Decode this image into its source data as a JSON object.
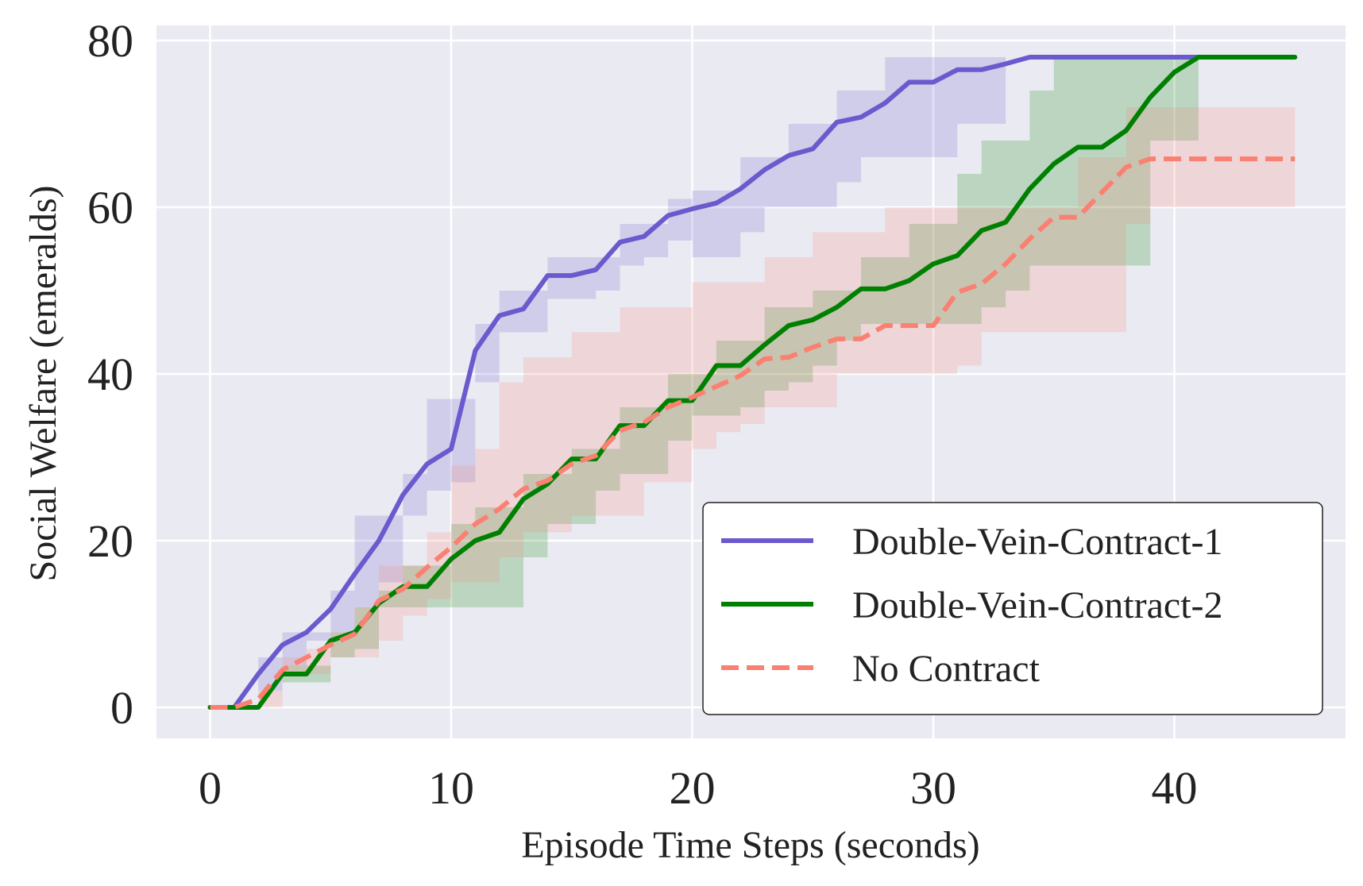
{
  "chart_data": {
    "type": "line",
    "title": "",
    "xlabel": "Episode Time Steps (seconds)",
    "ylabel": "Social Welfare (emeralds)",
    "xlim": [
      -2.2,
      47.2
    ],
    "ylim": [
      -4,
      82
    ],
    "xticks": [
      0,
      10,
      20,
      30,
      40
    ],
    "yticks": [
      0,
      20,
      40,
      60,
      80
    ],
    "grid": true,
    "legend_position": "lower-right",
    "background": "#EAEAF2",
    "x": [
      0,
      1,
      2,
      3,
      4,
      5,
      6,
      7,
      8,
      9,
      10,
      11,
      12,
      13,
      14,
      15,
      16,
      17,
      18,
      19,
      20,
      21,
      22,
      23,
      24,
      25,
      26,
      27,
      28,
      29,
      30,
      31,
      32,
      33,
      34,
      35,
      36,
      37,
      38,
      39,
      40,
      41,
      42,
      43,
      44,
      45
    ],
    "series": [
      {
        "name": "Double-Vein-Contract-1",
        "color": "#6A5ACD",
        "style": "solid",
        "values": [
          0,
          0,
          4,
          7.5,
          9,
          11.8,
          16,
          20,
          25.5,
          29.2,
          31,
          42.8,
          47,
          47.8,
          51.8,
          51.8,
          52.5,
          55.8,
          56.5,
          59,
          59.8,
          60.5,
          62.2,
          64.5,
          66.2,
          67,
          70.2,
          70.8,
          72.5,
          75,
          75,
          76.5,
          76.5,
          77.2,
          78,
          78,
          78,
          78,
          78,
          78,
          78,
          78,
          null,
          null,
          null,
          null
        ],
        "lower": [
          0,
          0,
          2,
          5,
          8,
          9,
          12,
          15,
          23,
          26,
          27,
          39,
          45,
          45,
          49,
          49,
          50,
          53,
          54,
          56,
          54,
          54,
          57,
          60,
          60,
          60,
          63,
          66,
          66,
          66,
          66,
          70,
          70,
          72,
          null,
          null,
          null,
          null,
          null,
          null,
          null,
          null,
          null,
          null,
          null,
          null
        ],
        "upper": [
          0,
          0,
          6,
          9,
          9,
          14,
          23,
          23,
          28,
          37,
          37,
          46,
          50,
          50,
          54,
          54,
          54,
          58,
          58,
          61,
          62,
          62,
          66,
          66,
          70,
          70,
          74,
          74,
          78,
          78,
          78,
          78,
          78,
          78,
          null,
          null,
          null,
          null,
          null,
          null,
          null,
          null,
          null,
          null,
          null,
          null
        ]
      },
      {
        "name": "Double-Vein-Contract-2",
        "color": "#008000",
        "style": "solid",
        "values": [
          0,
          0,
          0,
          4,
          4,
          8,
          9,
          12.5,
          14.5,
          14.5,
          17.8,
          20,
          21,
          25,
          26.8,
          29.8,
          29.8,
          33.8,
          33.8,
          36.8,
          36.8,
          41,
          41,
          43.5,
          45.8,
          46.5,
          48,
          50.2,
          50.2,
          51.2,
          53.2,
          54.2,
          57.2,
          58.2,
          62.2,
          65.2,
          67.2,
          67.2,
          69.2,
          73.2,
          76.2,
          78,
          78,
          78,
          78,
          78
        ],
        "lower": [
          0,
          0,
          0,
          3,
          3,
          6,
          7,
          12,
          12,
          12,
          12,
          12,
          12,
          18,
          22,
          22,
          26,
          28,
          28,
          32,
          35,
          35,
          36,
          38,
          39,
          41,
          44,
          46,
          46,
          46,
          46,
          46,
          48,
          50,
          53,
          53,
          53,
          53,
          53,
          68,
          68,
          78,
          78,
          78,
          78,
          78
        ],
        "upper": [
          0,
          0,
          0,
          5,
          5,
          9,
          12,
          14,
          17,
          17,
          22,
          24,
          24,
          28,
          28,
          31,
          31,
          36,
          36,
          40,
          40,
          44,
          44,
          48,
          48,
          50,
          50,
          54,
          54,
          58,
          58,
          64,
          68,
          68,
          74,
          78,
          78,
          78,
          78,
          78,
          78,
          78,
          78,
          78,
          78,
          78
        ]
      },
      {
        "name": "No Contract",
        "color": "#FA8072",
        "style": "dashed",
        "values": [
          0,
          0,
          1,
          4.5,
          6,
          7.5,
          8.8,
          12.8,
          14.2,
          16.8,
          19.2,
          22,
          23.8,
          26.2,
          27.2,
          29.2,
          30.2,
          33.2,
          34.2,
          36,
          37.2,
          38.5,
          39.8,
          41.8,
          42,
          43.2,
          44.2,
          44.2,
          45.8,
          45.8,
          45.8,
          49.8,
          50.8,
          53.2,
          56.2,
          58.8,
          58.8,
          61.8,
          64.8,
          65.8,
          65.8,
          65.8,
          65.8,
          65.8,
          65.8,
          65.8
        ],
        "lower": [
          0,
          0,
          0,
          4,
          4,
          6,
          6,
          8,
          11,
          13,
          15,
          15,
          18,
          21,
          21,
          23,
          23,
          23,
          27,
          27,
          31,
          33,
          34,
          36,
          36,
          36,
          40,
          40,
          40,
          40,
          40,
          41,
          45,
          45,
          45,
          45,
          45,
          45,
          58,
          60,
          60,
          60,
          60,
          60,
          60,
          60
        ],
        "upper": [
          0,
          0,
          2,
          6,
          7,
          9,
          12,
          17,
          17,
          21,
          29,
          31,
          39,
          42,
          42,
          45,
          45,
          48,
          48,
          48,
          51,
          51,
          51,
          54,
          54,
          57,
          57,
          57,
          60,
          60,
          60,
          60,
          60,
          60,
          60,
          60,
          66,
          66,
          72,
          72,
          72,
          72,
          72,
          72,
          72,
          72
        ]
      }
    ]
  }
}
